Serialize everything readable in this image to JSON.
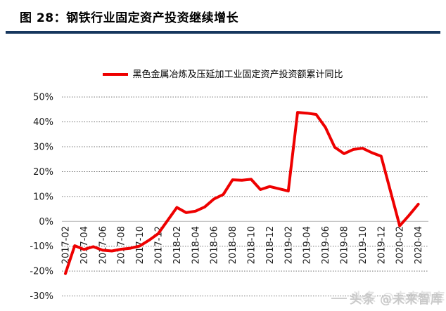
{
  "header": {
    "title": "图 28：钢铁行业固定资产投资继续增长",
    "rule_color": "#17375E"
  },
  "watermark": {
    "text": "头条 @未来智库"
  },
  "chart_data": {
    "type": "line",
    "title": "",
    "xlabel": "",
    "ylabel": "",
    "legend_position": "top",
    "grid": "horizontal-dotted",
    "ylim": [
      -30,
      50
    ],
    "y_ticks": [
      {
        "v": 50,
        "label": "50%"
      },
      {
        "v": 40,
        "label": "40%"
      },
      {
        "v": 30,
        "label": "30%"
      },
      {
        "v": 20,
        "label": "20%"
      },
      {
        "v": 10,
        "label": "10%"
      },
      {
        "v": 0,
        "label": "0%"
      },
      {
        "v": -10,
        "label": "-10%"
      },
      {
        "v": -20,
        "label": "-20%"
      },
      {
        "v": -30,
        "label": "-30%"
      }
    ],
    "x_ticks": [
      "2017-02",
      "2017-04",
      "2017-06",
      "2017-08",
      "2017-10",
      "2017-12",
      "2018-02",
      "2018-04",
      "2018-06",
      "2018-08",
      "2018-10",
      "2018-12",
      "2019-02",
      "2019-04",
      "2019-06",
      "2019-08",
      "2019-10",
      "2019-12",
      "2020-02",
      "2020-04"
    ],
    "series": [
      {
        "name": "黑色金属冶炼及压延加工业固定资产投资额累计同比",
        "color": "#EE0000",
        "unit": "%",
        "points": [
          [
            "2017-02",
            -21.0
          ],
          [
            "2017-03",
            -9.8
          ],
          [
            "2017-04",
            -11.3
          ],
          [
            "2017-05",
            -10.2
          ],
          [
            "2017-06",
            -11.6
          ],
          [
            "2017-07",
            -11.9
          ],
          [
            "2017-08",
            -11.2
          ],
          [
            "2017-09",
            -10.8
          ],
          [
            "2017-10",
            -9.9
          ],
          [
            "2017-11",
            -7.6
          ],
          [
            "2017-12",
            -4.9
          ],
          [
            "2018-02",
            5.6
          ],
          [
            "2018-03",
            3.5
          ],
          [
            "2018-04",
            4.1
          ],
          [
            "2018-05",
            5.8
          ],
          [
            "2018-06",
            9.0
          ],
          [
            "2018-07",
            10.8
          ],
          [
            "2018-08",
            16.7
          ],
          [
            "2018-09",
            16.5
          ],
          [
            "2018-10",
            16.9
          ],
          [
            "2018-11",
            12.8
          ],
          [
            "2018-12",
            14.0
          ],
          [
            "2019-02",
            12.2
          ],
          [
            "2019-03",
            43.8
          ],
          [
            "2019-04",
            43.5
          ],
          [
            "2019-05",
            43.0
          ],
          [
            "2019-06",
            37.8
          ],
          [
            "2019-07",
            29.8
          ],
          [
            "2019-08",
            27.2
          ],
          [
            "2019-09",
            28.9
          ],
          [
            "2019-10",
            29.4
          ],
          [
            "2019-11",
            27.6
          ],
          [
            "2019-12",
            26.2
          ],
          [
            "2020-02",
            -1.8
          ],
          [
            "2020-03",
            2.4
          ],
          [
            "2020-04",
            6.9
          ]
        ]
      }
    ]
  }
}
